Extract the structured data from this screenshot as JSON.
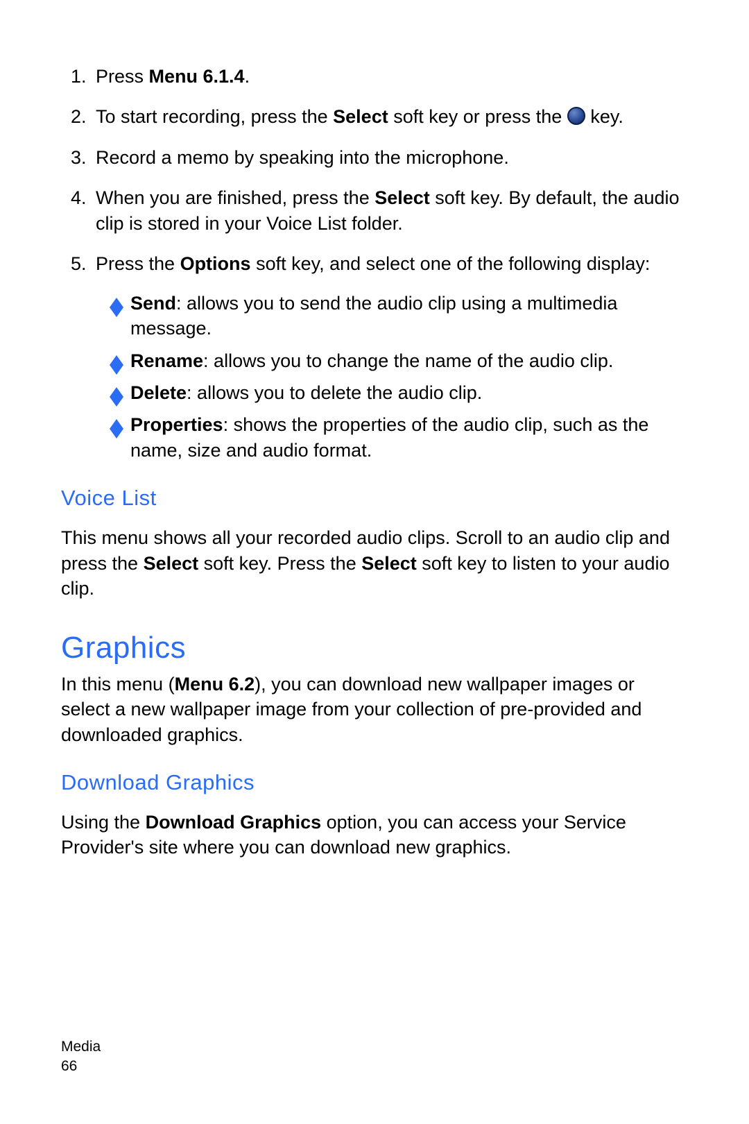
{
  "colors": {
    "accent": "#2a6df4",
    "text": "#000000",
    "bullet_fill": "#2a6df4",
    "key_gradient_inner": "#6a89c9",
    "key_gradient_mid": "#2b4d9a",
    "key_gradient_outer": "#0e2655",
    "key_border": "#0a1f4a",
    "background": "#ffffff"
  },
  "typography": {
    "body_font": "Arial",
    "body_size_pt": 20,
    "subhead_size_pt": 23,
    "section_size_pt": 33,
    "footer_size_pt": 16
  },
  "steps": [
    {
      "n": "1.",
      "pre": "Press ",
      "bold": "Menu 6.1.4",
      "post": "."
    },
    {
      "n": "2.",
      "pre": "To start recording, press the ",
      "bold": "Select",
      "mid": " soft key or press the ",
      "icon": "circle-key",
      "post": " key."
    },
    {
      "n": "3.",
      "text": "Record a memo by speaking into the microphone."
    },
    {
      "n": "4.",
      "pre": "When you are finished, press the ",
      "bold": "Select",
      "post": " soft key. By default, the audio clip is stored in your Voice List folder."
    },
    {
      "n": "5.",
      "pre": "Press the ",
      "bold": "Options",
      "post": " soft key, and select one of the following display:"
    }
  ],
  "options": [
    {
      "term": "Send",
      "desc": ": allows you to send the audio clip using a multimedia message."
    },
    {
      "term": "Rename",
      "desc": ": allows you to change the name of the audio clip."
    },
    {
      "term": "Delete",
      "desc": ": allows you to delete the audio clip."
    },
    {
      "term": "Properties",
      "desc": ": shows the properties of the audio clip, such as the name, size and audio format."
    }
  ],
  "voice_list": {
    "heading": "Voice List",
    "p1a": "This menu shows all your recorded audio clips. Scroll to an audio clip and press the ",
    "b1": "Select",
    "p1b": " soft key. Press the ",
    "b2": "Select",
    "p1c": " soft key to listen to your audio clip."
  },
  "graphics": {
    "heading": "Graphics",
    "p1a": "In this menu (",
    "b1": "Menu 6.2",
    "p1b": "), you can download new wallpaper images or select a new wallpaper image from your collection of pre-provided and downloaded graphics."
  },
  "download_graphics": {
    "heading": "Download Graphics",
    "p1a": "Using the ",
    "b1": "Download Graphics",
    "p1b": " option, you can access your Service Provider's site where you can download new graphics."
  },
  "footer": {
    "chapter": "Media",
    "page": "66"
  }
}
